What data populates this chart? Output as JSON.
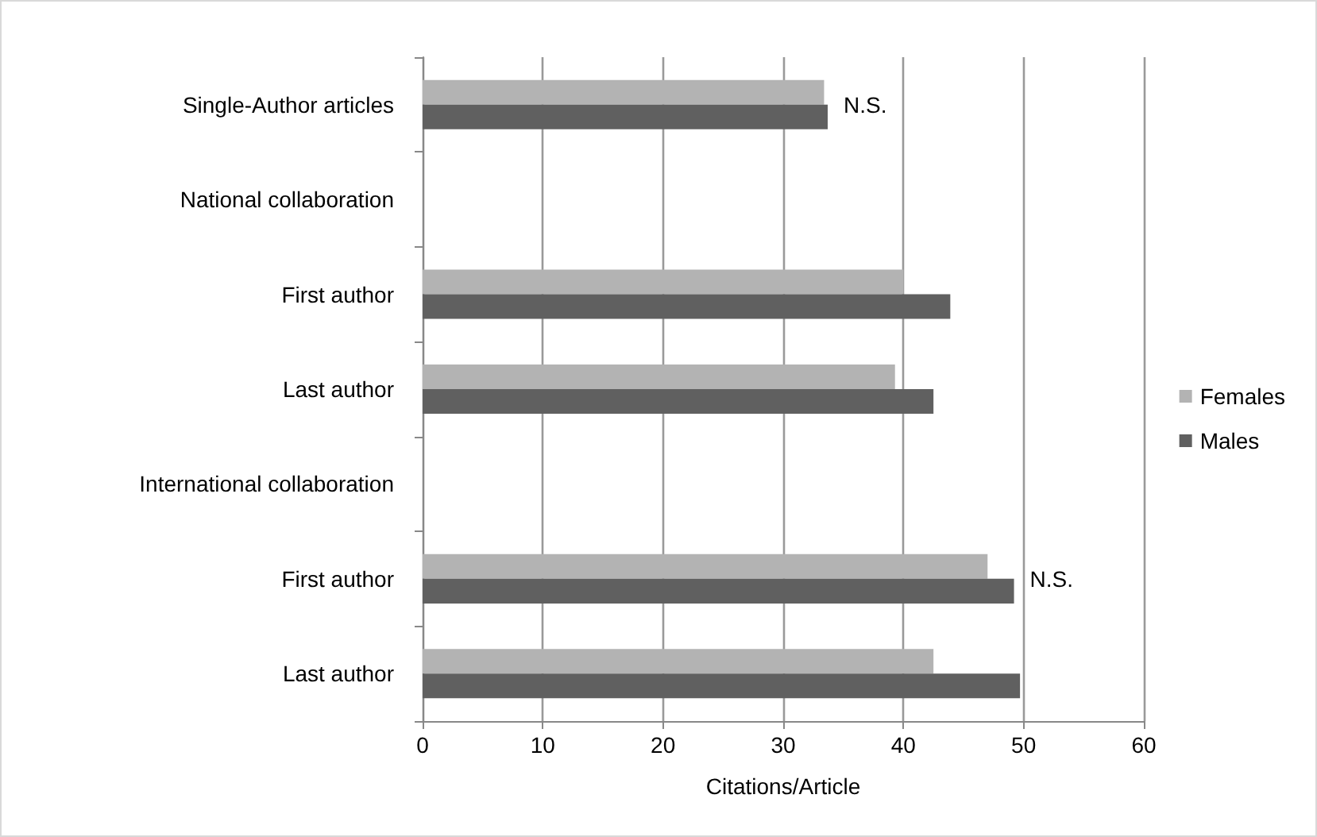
{
  "chart_data": {
    "type": "bar",
    "orientation": "horizontal",
    "xlabel": "Citations/Article",
    "categories": [
      "Single-Author articles",
      "National collaboration",
      "First author",
      "Last author",
      "International collaboration",
      "First author",
      "Last author"
    ],
    "series": [
      {
        "name": "Females",
        "color": "#b3b3b3",
        "values": [
          33.4,
          null,
          40.0,
          39.3,
          null,
          47.0,
          42.5
        ]
      },
      {
        "name": "Males",
        "color": "#606060",
        "values": [
          33.7,
          null,
          43.9,
          42.5,
          null,
          49.2,
          49.7
        ]
      }
    ],
    "xlim": [
      0,
      60
    ],
    "xticks": [
      0,
      10,
      20,
      30,
      40,
      50,
      60
    ],
    "grid": "x",
    "legend": "right",
    "annotations": [
      {
        "text": "N.S.",
        "x": 33.7,
        "y": "Single-Author articles"
      },
      {
        "text": "N.S.",
        "x": 49.2
      }
    ]
  }
}
